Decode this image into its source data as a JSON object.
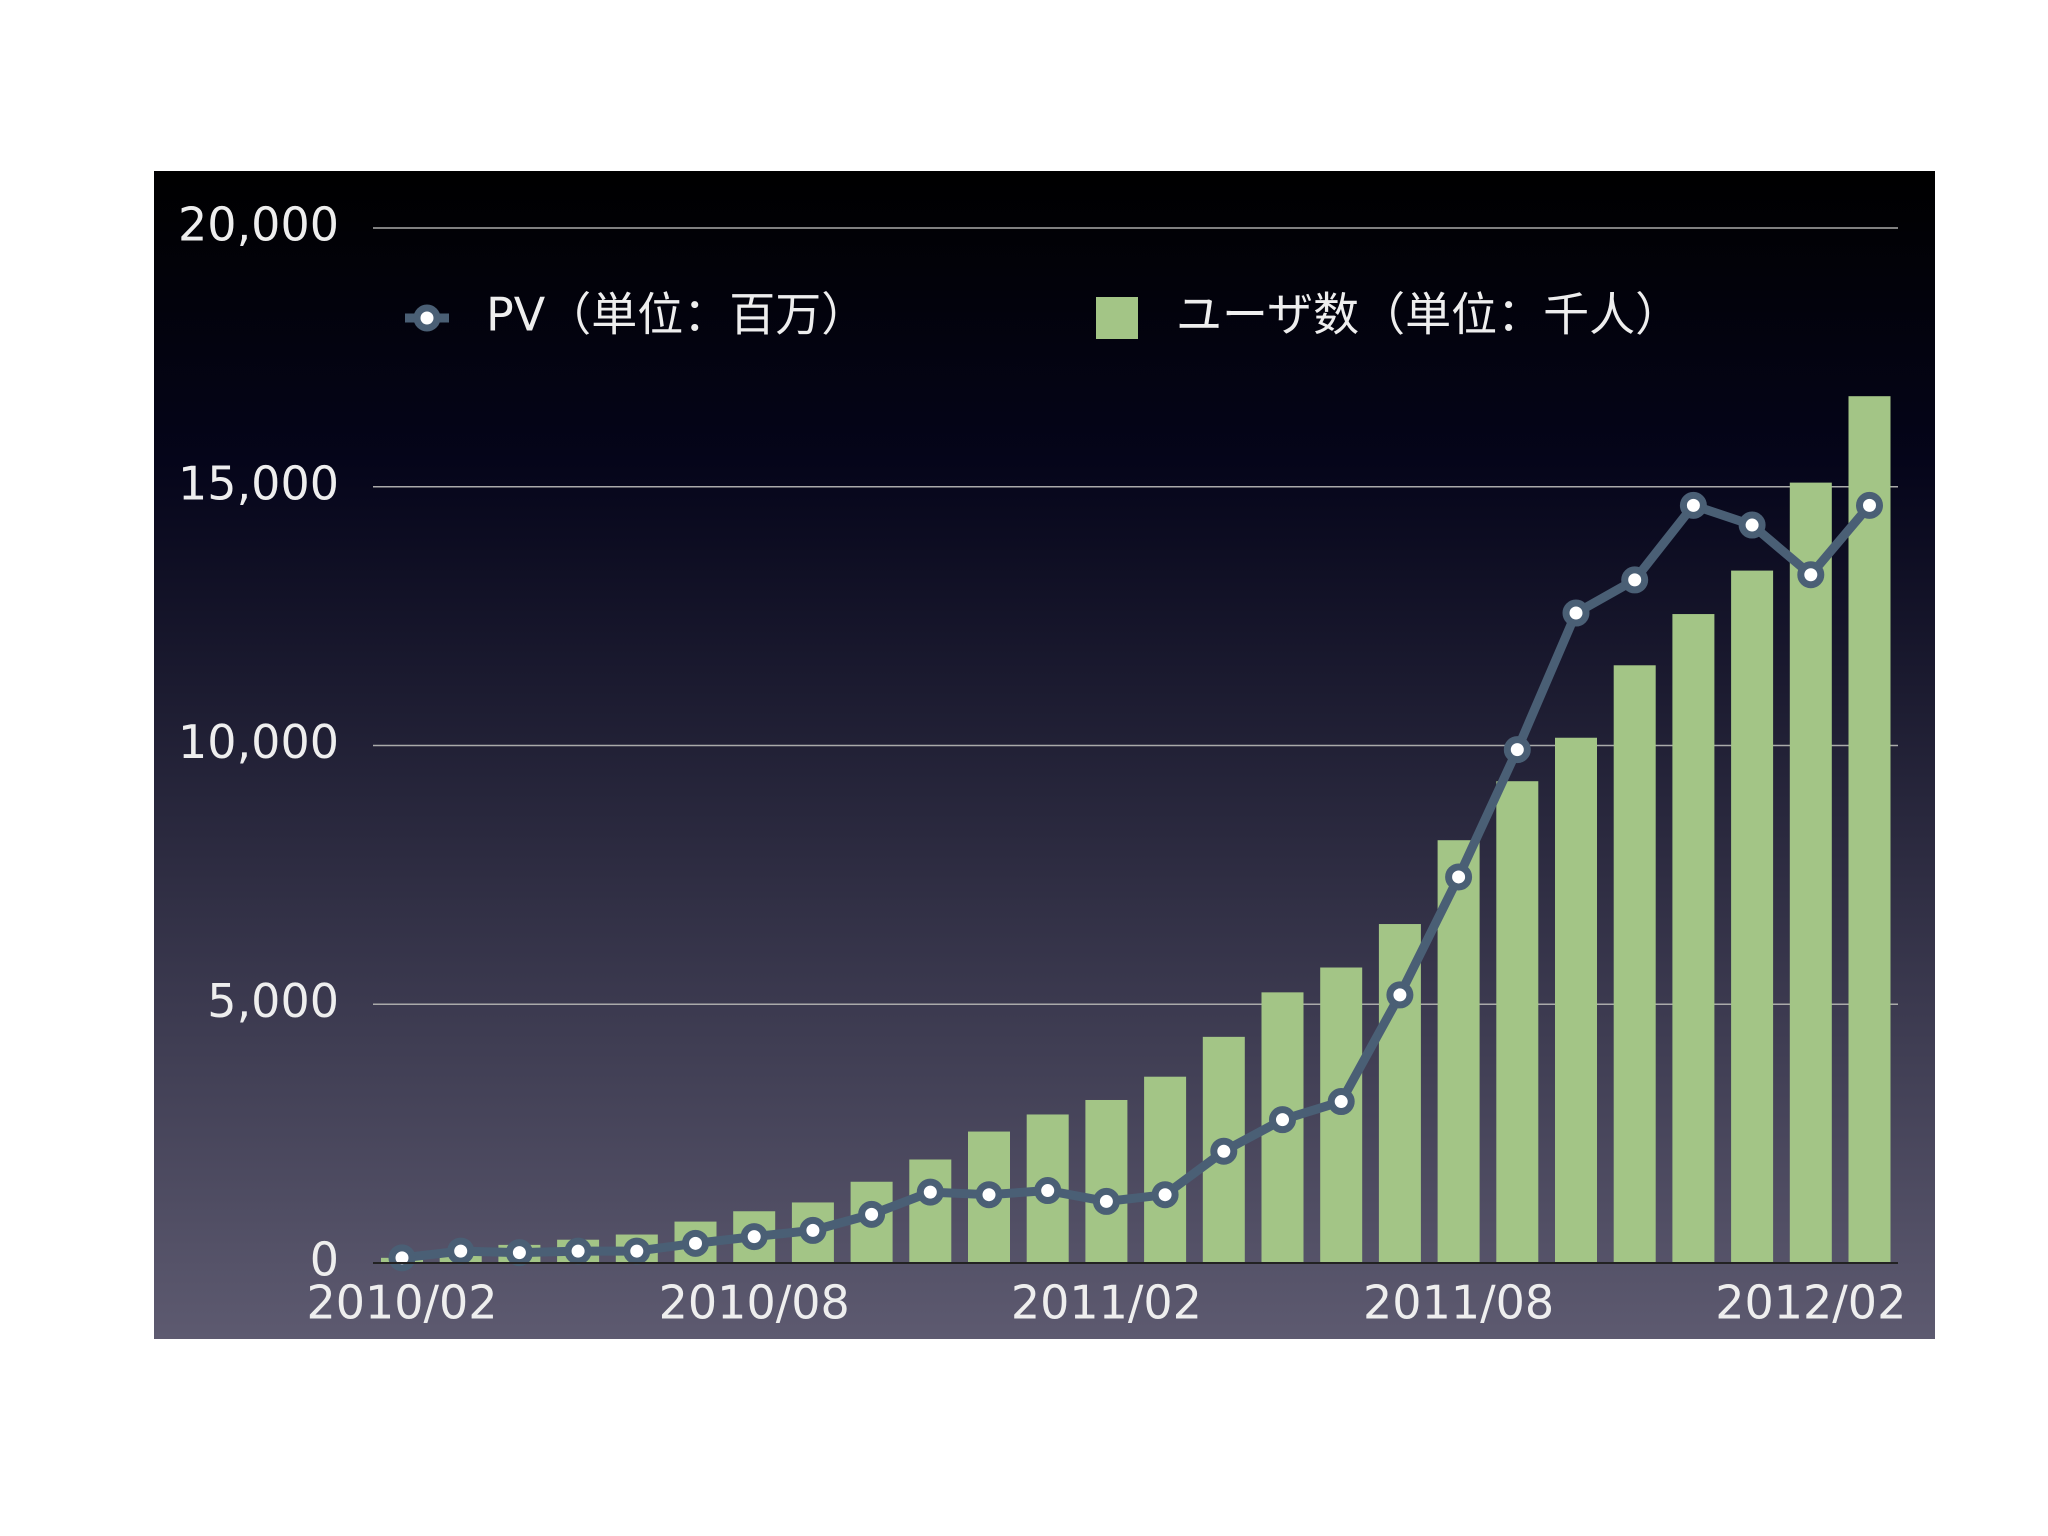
{
  "chart_data": {
    "type": "bar",
    "categories": [
      "2010/02",
      null,
      null,
      null,
      null,
      null,
      "2010/08",
      null,
      null,
      null,
      null,
      null,
      "2011/02",
      null,
      null,
      null,
      null,
      null,
      "2011/08",
      null,
      null,
      null,
      null,
      null,
      "2012/02",
      null
    ],
    "series": [
      {
        "name": "PV（単位：百万）",
        "type": "line",
        "color": "#4a5f75",
        "values": [
          100,
          230,
          200,
          230,
          230,
          380,
          510,
          630,
          940,
          1370,
          1320,
          1400,
          1190,
          1320,
          2160,
          2770,
          3120,
          5180,
          7460,
          9920,
          12560,
          13200,
          14640,
          14260,
          13300,
          14640
        ]
      },
      {
        "name": "ユーザ数（単位：千人）",
        "type": "bar",
        "color": "#a3c586",
        "values": [
          100,
          200,
          350,
          450,
          550,
          800,
          1000,
          1170,
          1570,
          2000,
          2540,
          2870,
          3150,
          3600,
          4370,
          5230,
          5710,
          6550,
          8170,
          9310,
          10150,
          11550,
          12540,
          13380,
          15080,
          16750
        ]
      }
    ],
    "ylim": [
      0,
      20000
    ],
    "yticks": [
      {
        "value": 0,
        "label": "0"
      },
      {
        "value": 5000,
        "label": "5,000"
      },
      {
        "value": 10000,
        "label": "10,000"
      },
      {
        "value": 15000,
        "label": "15,000"
      },
      {
        "value": 20000,
        "label": "20,000"
      }
    ],
    "grid": true,
    "legend": "top"
  }
}
